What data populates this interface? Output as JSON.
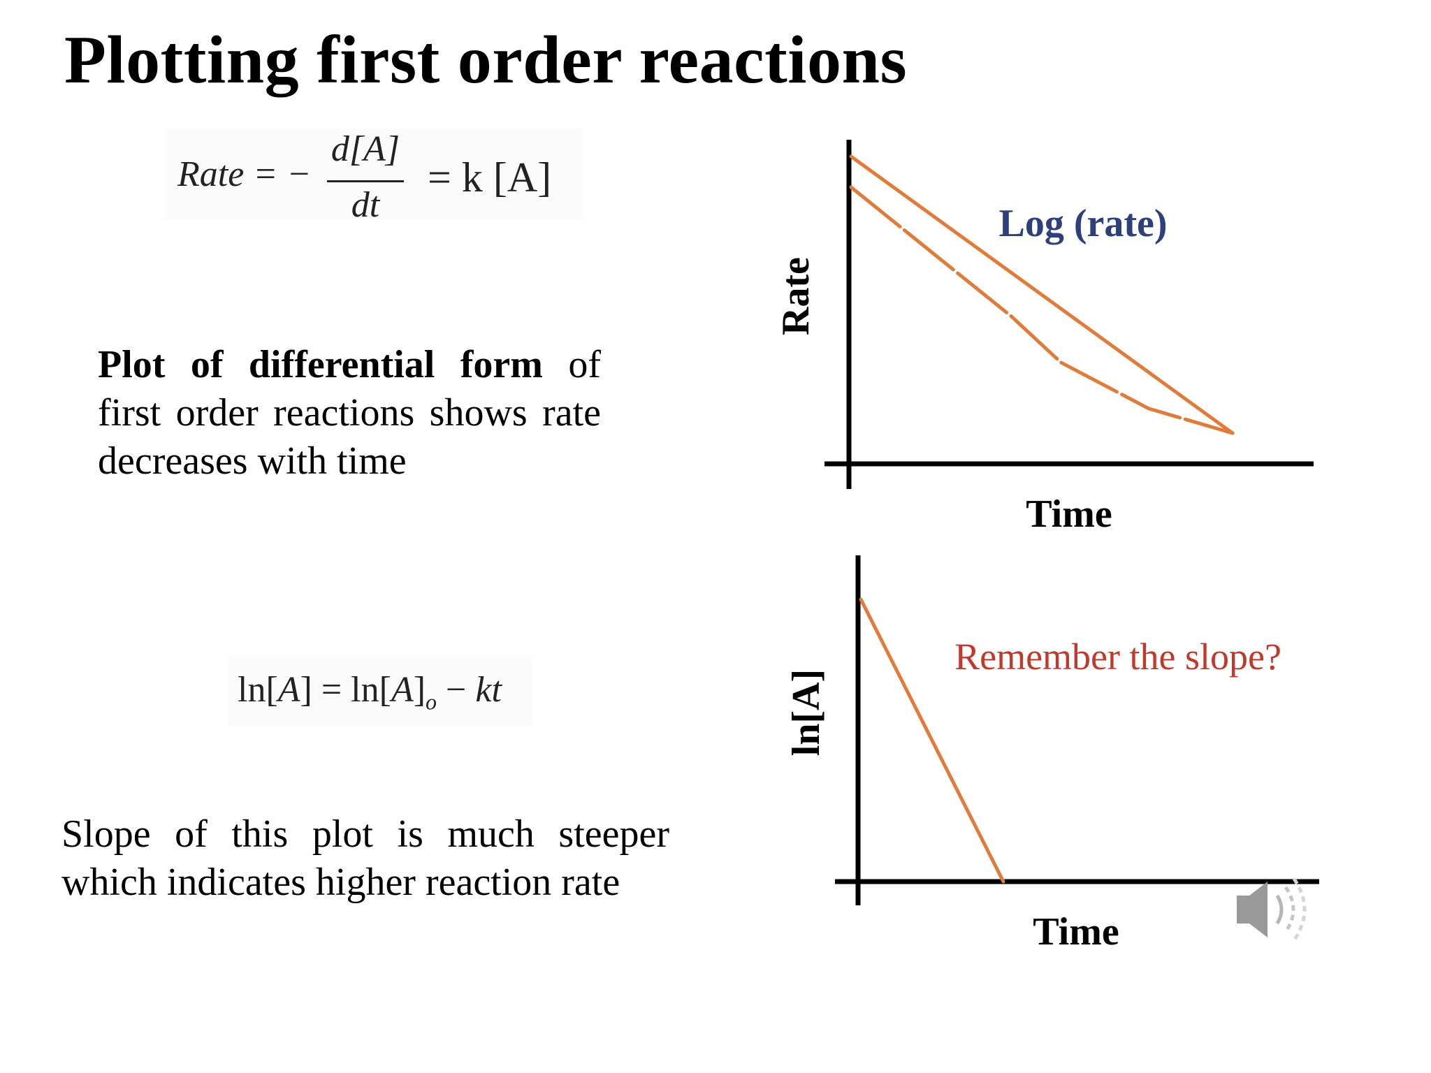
{
  "title": "Plotting first order reactions",
  "equation1": {
    "lhs": "Rate = −",
    "numerator": "d[A]",
    "denominator": "dt",
    "rhs": "= k [A]"
  },
  "description1": {
    "bold": "Plot of differential form",
    "rest": " of first order reactions shows rate decreases with time"
  },
  "equation2": {
    "ln_a": "ln[",
    "a": "A",
    "mid": "] = ln[",
    "a2": "A",
    "close": "]",
    "sub": "o",
    "minus": " − ",
    "kt": "kt"
  },
  "description2": "Slope of this plot is much steeper which indicates higher reaction rate",
  "chart_data": [
    {
      "type": "line",
      "ylabel": "Rate",
      "xlabel": "Time",
      "annotation": "Log (rate)",
      "annotation_color": "#2e3f7a",
      "line_color": "#e07b39",
      "series": [
        {
          "style": "solid",
          "x": [
            0,
            1
          ],
          "y": [
            1.0,
            0.1
          ]
        },
        {
          "style": "dashed",
          "x": [
            0,
            0.42,
            0.55,
            0.78,
            1
          ],
          "y": [
            0.9,
            0.48,
            0.33,
            0.18,
            0.1
          ]
        }
      ]
    },
    {
      "type": "line",
      "ylabel": "ln[A]",
      "xlabel": "Time",
      "annotation": "Remember the slope?",
      "annotation_color": "#c0392b",
      "line_color": "#e07b39",
      "series": [
        {
          "style": "solid",
          "x": [
            0,
            1
          ],
          "y": [
            1.0,
            0
          ]
        }
      ]
    }
  ],
  "icons": {
    "audio": "speaker-icon"
  }
}
